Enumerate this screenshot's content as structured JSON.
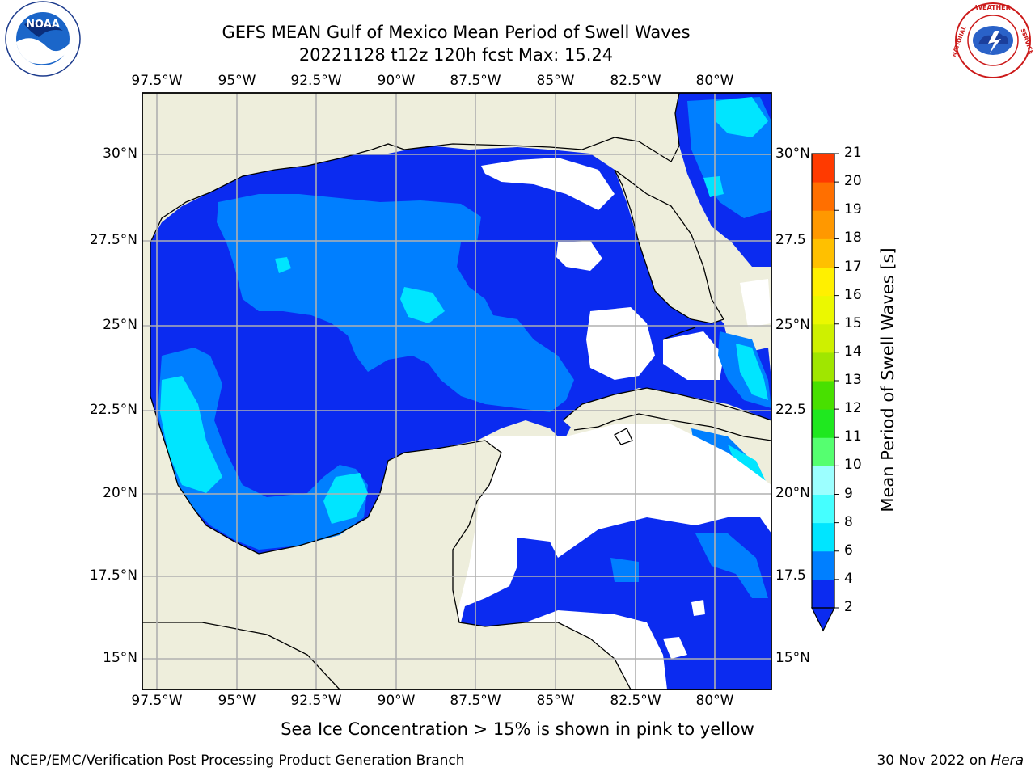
{
  "title": {
    "line1": "GEFS MEAN Gulf of Mexico Mean Period of Swell Waves",
    "line2": "20221128 t12z 120h fcst   Max: 15.24"
  },
  "logos": {
    "left": {
      "name": "NOAA",
      "ring_text": "NATIONAL OCEANIC AND ATMOSPHERIC ADMINISTRATION · U.S. DEPARTMENT OF COMMERCE"
    },
    "right": {
      "name": "NATIONAL WEATHER SERVICE"
    }
  },
  "map": {
    "lon_ticks": [
      "97.5°W",
      "95°W",
      "92.5°W",
      "90°W",
      "87.5°W",
      "85°W",
      "82.5°W",
      "80°W"
    ],
    "lat_ticks_left": [
      "30°N",
      "27.5°N",
      "25°N",
      "22.5°N",
      "20°N",
      "17.5°N",
      "15°N"
    ],
    "lat_ticks_right": [
      "30°N",
      "27.5",
      "25°N",
      "22.5",
      "20°N",
      "17.5",
      "15°N"
    ],
    "colors": {
      "land": "#eeeedc",
      "nodata": "#ffffff",
      "gridline": "#b0b0b0",
      "coast": "#000000"
    }
  },
  "colorbar": {
    "title": "Mean Period of Swell Waves [s]",
    "levels": [
      "2",
      "4",
      "6",
      "8",
      "9",
      "10",
      "11",
      "12",
      "13",
      "14",
      "15",
      "16",
      "17",
      "18",
      "19",
      "20",
      "21"
    ],
    "colors": [
      "#0b2bf0",
      "#007fff",
      "#00e5ff",
      "#45ffff",
      "#9cffff",
      "#55ff70",
      "#1fe81f",
      "#48e000",
      "#a0e600",
      "#cef000",
      "#ebf800",
      "#fff000",
      "#ffc000",
      "#ff9800",
      "#ff6f00",
      "#ff3a00"
    ]
  },
  "caption": "Sea Ice Concentration > 15% is shown in pink to yellow",
  "footer": {
    "left": "NCEP/EMC/Verification Post Processing Product Generation Branch",
    "right_prefix": "30 Nov 2022 on ",
    "right_machine": "Hera"
  }
}
